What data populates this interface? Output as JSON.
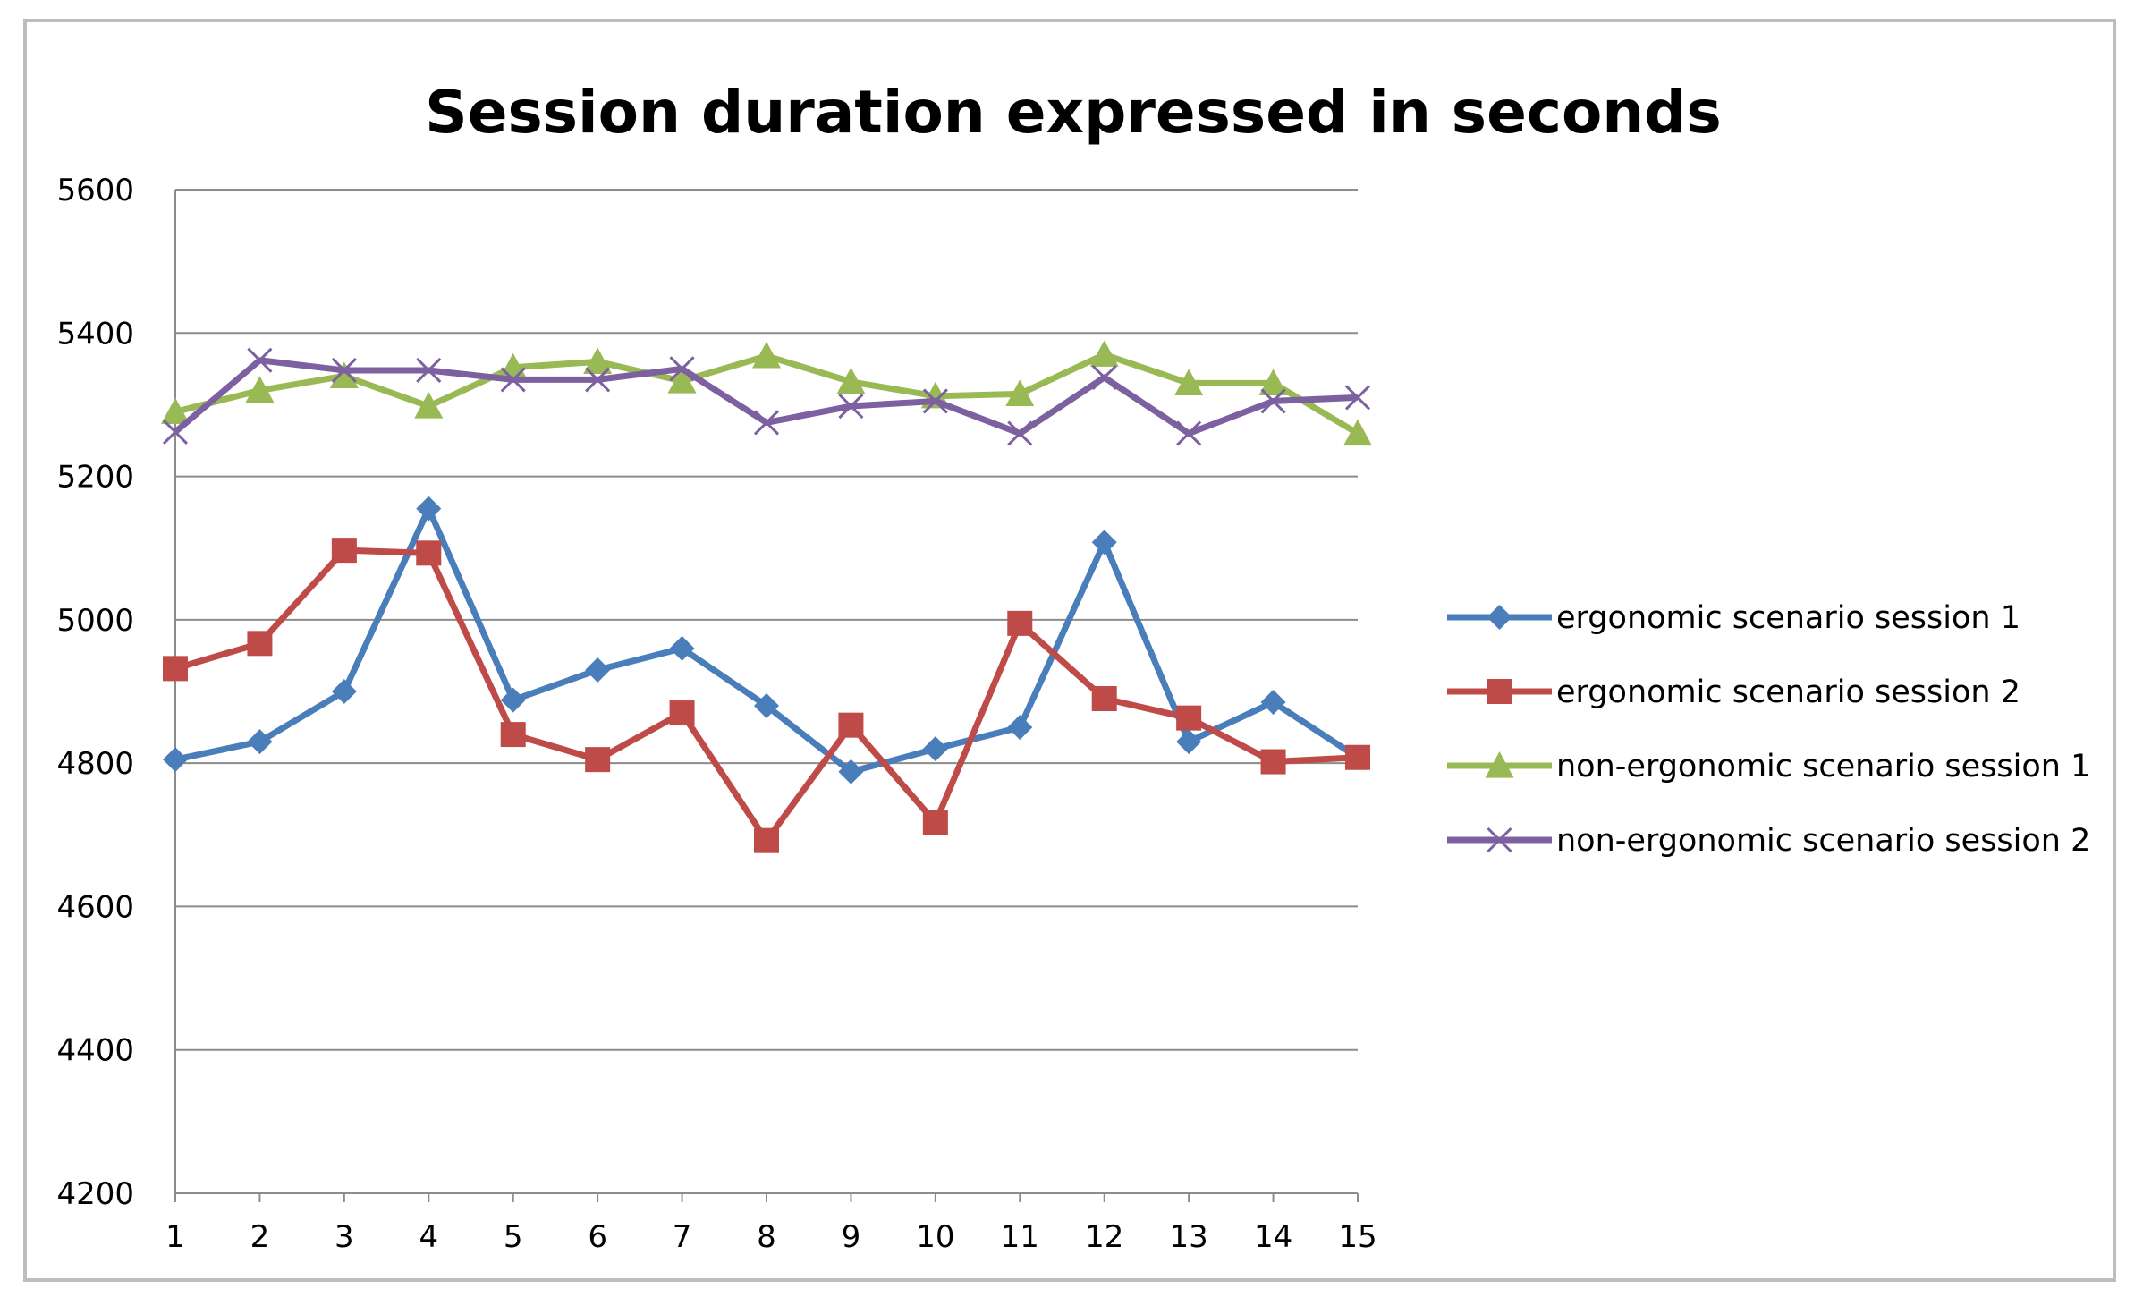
{
  "chart_data": {
    "type": "line",
    "title": "Session duration expressed in seconds",
    "xlabel": "",
    "ylabel": "",
    "categories": [
      "1",
      "2",
      "3",
      "4",
      "5",
      "6",
      "7",
      "8",
      "9",
      "10",
      "11",
      "12",
      "13",
      "14",
      "15"
    ],
    "ylim": [
      4200,
      5600
    ],
    "yticks": [
      "4200",
      "4400",
      "4600",
      "4800",
      "5000",
      "5200",
      "5400",
      "5600"
    ],
    "grid": true,
    "legend_position": "right",
    "series": [
      {
        "name": "ergonomic scenario session 1",
        "color": "#4a7ebb",
        "marker": "diamond",
        "values": [
          4805,
          4830,
          4900,
          5155,
          4888,
          4930,
          4960,
          4880,
          4788,
          4820,
          4850,
          5108,
          4830,
          4885,
          4808
        ]
      },
      {
        "name": "ergonomic scenario session 2",
        "color": "#be4b48",
        "marker": "square",
        "values": [
          4932,
          4967,
          5097,
          5093,
          4840,
          4805,
          4870,
          4692,
          4853,
          4717,
          4995,
          4890,
          4863,
          4802,
          4808
        ]
      },
      {
        "name": "non-ergonomic scenario session 1",
        "color": "#98b954",
        "marker": "triangle",
        "values": [
          5290,
          5320,
          5340,
          5298,
          5352,
          5360,
          5333,
          5368,
          5332,
          5312,
          5315,
          5370,
          5330,
          5330,
          5260
        ]
      },
      {
        "name": "non-ergonomic scenario session 2",
        "color": "#7d60a0",
        "marker": "x",
        "values": [
          5262,
          5362,
          5348,
          5348,
          5335,
          5335,
          5350,
          5275,
          5298,
          5305,
          5260,
          5338,
          5260,
          5305,
          5310
        ]
      }
    ]
  }
}
